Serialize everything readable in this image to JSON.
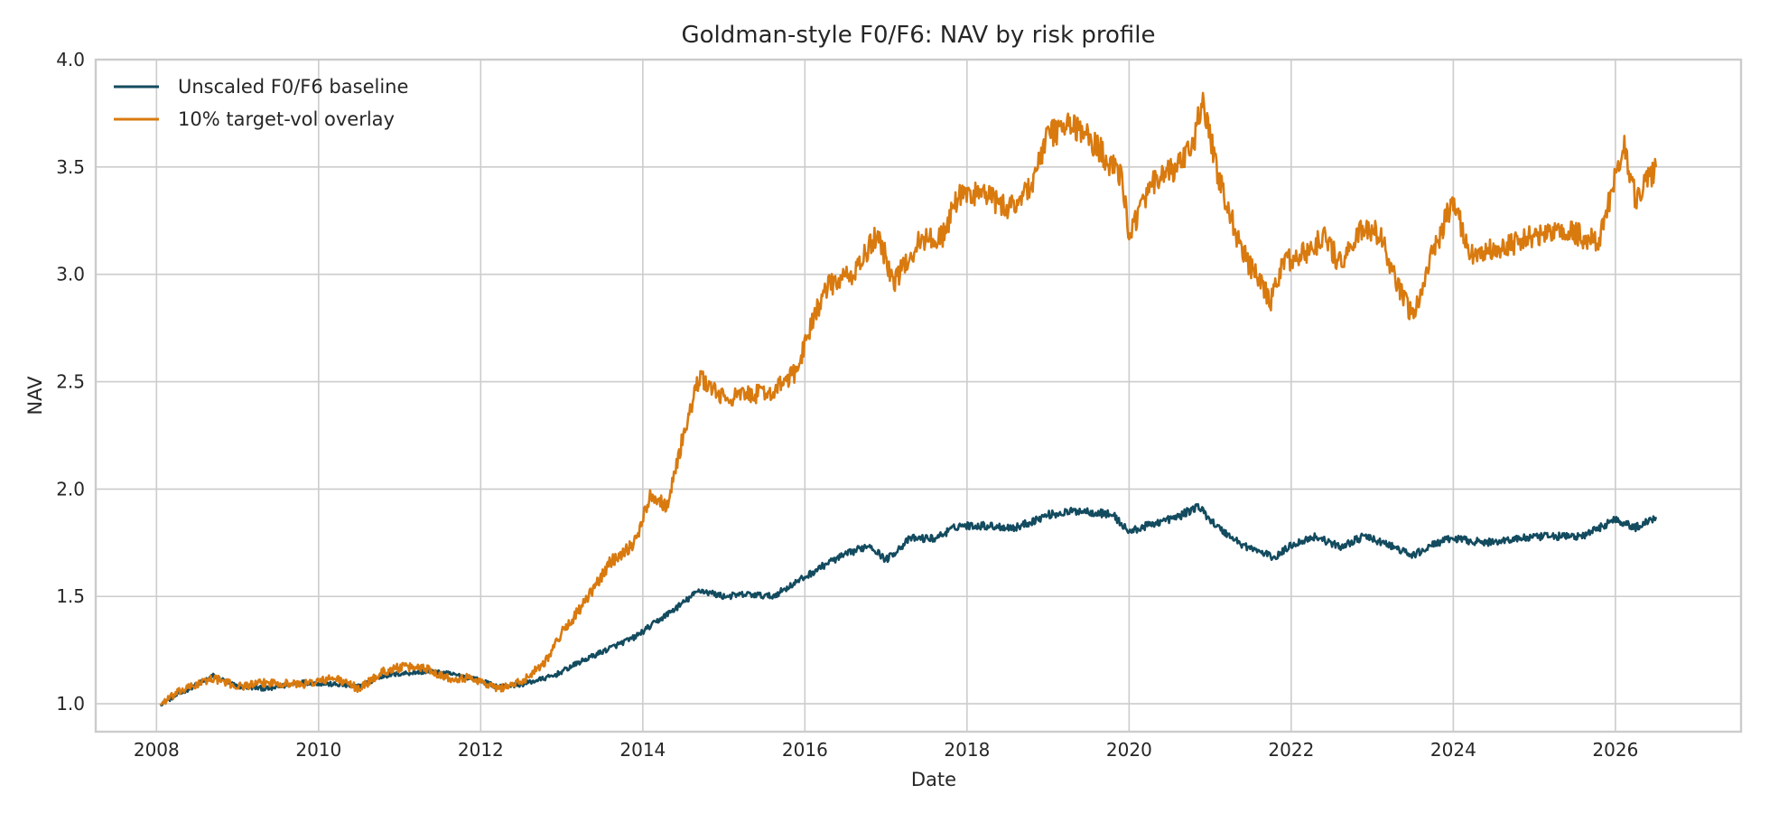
{
  "chart_data": {
    "type": "line",
    "title": "Goldman-style F0/F6: NAV by risk profile",
    "xlabel": "Date",
    "ylabel": "NAV",
    "xlim": [
      2007.25,
      2027.55
    ],
    "ylim": [
      0.87,
      4.0
    ],
    "x_ticks": [
      2008,
      2010,
      2012,
      2014,
      2016,
      2018,
      2020,
      2022,
      2024,
      2026
    ],
    "x_tick_labels": [
      "2008",
      "2010",
      "2012",
      "2014",
      "2016",
      "2018",
      "2020",
      "2022",
      "2024",
      "2026"
    ],
    "y_ticks": [
      1.0,
      1.5,
      2.0,
      2.5,
      3.0,
      3.5,
      4.0
    ],
    "y_tick_labels": [
      "1.0",
      "1.5",
      "2.0",
      "2.5",
      "3.0",
      "3.5",
      "4.0"
    ],
    "grid": true,
    "legend_position": "top-left",
    "series": [
      {
        "name": "Unscaled F0/F6 baseline",
        "color": "#134b5f",
        "points": [
          [
            2008.05,
            1.0
          ],
          [
            2008.3,
            1.05
          ],
          [
            2008.7,
            1.13
          ],
          [
            2009.0,
            1.08
          ],
          [
            2009.4,
            1.07
          ],
          [
            2009.8,
            1.1
          ],
          [
            2010.2,
            1.09
          ],
          [
            2010.5,
            1.08
          ],
          [
            2010.8,
            1.13
          ],
          [
            2011.0,
            1.14
          ],
          [
            2011.3,
            1.15
          ],
          [
            2011.6,
            1.14
          ],
          [
            2011.9,
            1.12
          ],
          [
            2012.2,
            1.08
          ],
          [
            2012.5,
            1.09
          ],
          [
            2012.9,
            1.13
          ],
          [
            2013.2,
            1.19
          ],
          [
            2013.6,
            1.26
          ],
          [
            2013.9,
            1.31
          ],
          [
            2014.2,
            1.39
          ],
          [
            2014.5,
            1.47
          ],
          [
            2014.7,
            1.53
          ],
          [
            2015.0,
            1.5
          ],
          [
            2015.3,
            1.51
          ],
          [
            2015.6,
            1.5
          ],
          [
            2016.0,
            1.59
          ],
          [
            2016.3,
            1.66
          ],
          [
            2016.6,
            1.71
          ],
          [
            2016.8,
            1.74
          ],
          [
            2017.0,
            1.67
          ],
          [
            2017.3,
            1.77
          ],
          [
            2017.6,
            1.77
          ],
          [
            2017.9,
            1.83
          ],
          [
            2018.2,
            1.83
          ],
          [
            2018.6,
            1.82
          ],
          [
            2019.0,
            1.88
          ],
          [
            2019.4,
            1.9
          ],
          [
            2019.8,
            1.88
          ],
          [
            2020.0,
            1.8
          ],
          [
            2020.3,
            1.84
          ],
          [
            2020.6,
            1.87
          ],
          [
            2020.85,
            1.92
          ],
          [
            2021.1,
            1.82
          ],
          [
            2021.4,
            1.74
          ],
          [
            2021.8,
            1.68
          ],
          [
            2022.0,
            1.74
          ],
          [
            2022.3,
            1.78
          ],
          [
            2022.6,
            1.73
          ],
          [
            2022.9,
            1.78
          ],
          [
            2023.2,
            1.74
          ],
          [
            2023.5,
            1.69
          ],
          [
            2023.8,
            1.75
          ],
          [
            2024.0,
            1.77
          ],
          [
            2024.4,
            1.75
          ],
          [
            2024.8,
            1.77
          ],
          [
            2025.2,
            1.78
          ],
          [
            2025.6,
            1.78
          ],
          [
            2026.0,
            1.86
          ],
          [
            2026.25,
            1.82
          ],
          [
            2026.5,
            1.87
          ]
        ]
      },
      {
        "name": "10% target-vol overlay",
        "color": "#d97a0f",
        "points": [
          [
            2008.05,
            1.0
          ],
          [
            2008.3,
            1.06
          ],
          [
            2008.7,
            1.12
          ],
          [
            2009.0,
            1.08
          ],
          [
            2009.4,
            1.1
          ],
          [
            2009.8,
            1.09
          ],
          [
            2010.2,
            1.12
          ],
          [
            2010.5,
            1.07
          ],
          [
            2010.8,
            1.15
          ],
          [
            2011.0,
            1.17
          ],
          [
            2011.3,
            1.17
          ],
          [
            2011.6,
            1.12
          ],
          [
            2011.9,
            1.12
          ],
          [
            2012.2,
            1.07
          ],
          [
            2012.5,
            1.1
          ],
          [
            2012.8,
            1.2
          ],
          [
            2013.0,
            1.33
          ],
          [
            2013.3,
            1.48
          ],
          [
            2013.6,
            1.66
          ],
          [
            2013.9,
            1.75
          ],
          [
            2014.1,
            1.98
          ],
          [
            2014.3,
            1.92
          ],
          [
            2014.5,
            2.25
          ],
          [
            2014.7,
            2.52
          ],
          [
            2015.0,
            2.42
          ],
          [
            2015.3,
            2.44
          ],
          [
            2015.6,
            2.45
          ],
          [
            2015.9,
            2.55
          ],
          [
            2016.1,
            2.8
          ],
          [
            2016.3,
            2.95
          ],
          [
            2016.6,
            3.0
          ],
          [
            2016.9,
            3.19
          ],
          [
            2017.1,
            2.96
          ],
          [
            2017.4,
            3.15
          ],
          [
            2017.7,
            3.18
          ],
          [
            2017.9,
            3.37
          ],
          [
            2018.2,
            3.38
          ],
          [
            2018.5,
            3.3
          ],
          [
            2018.8,
            3.42
          ],
          [
            2019.0,
            3.65
          ],
          [
            2019.3,
            3.7
          ],
          [
            2019.6,
            3.6
          ],
          [
            2019.9,
            3.45
          ],
          [
            2020.0,
            3.2
          ],
          [
            2020.3,
            3.42
          ],
          [
            2020.6,
            3.5
          ],
          [
            2020.8,
            3.6
          ],
          [
            2020.9,
            3.83
          ],
          [
            2021.1,
            3.45
          ],
          [
            2021.4,
            3.1
          ],
          [
            2021.75,
            2.87
          ],
          [
            2021.9,
            3.06
          ],
          [
            2022.2,
            3.1
          ],
          [
            2022.4,
            3.18
          ],
          [
            2022.6,
            3.05
          ],
          [
            2022.9,
            3.22
          ],
          [
            2023.1,
            3.18
          ],
          [
            2023.3,
            2.95
          ],
          [
            2023.5,
            2.8
          ],
          [
            2023.7,
            3.05
          ],
          [
            2024.0,
            3.35
          ],
          [
            2024.2,
            3.1
          ],
          [
            2024.6,
            3.12
          ],
          [
            2025.0,
            3.18
          ],
          [
            2025.4,
            3.2
          ],
          [
            2025.8,
            3.15
          ],
          [
            2026.0,
            3.45
          ],
          [
            2026.1,
            3.62
          ],
          [
            2026.25,
            3.35
          ],
          [
            2026.5,
            3.5
          ]
        ]
      }
    ]
  }
}
